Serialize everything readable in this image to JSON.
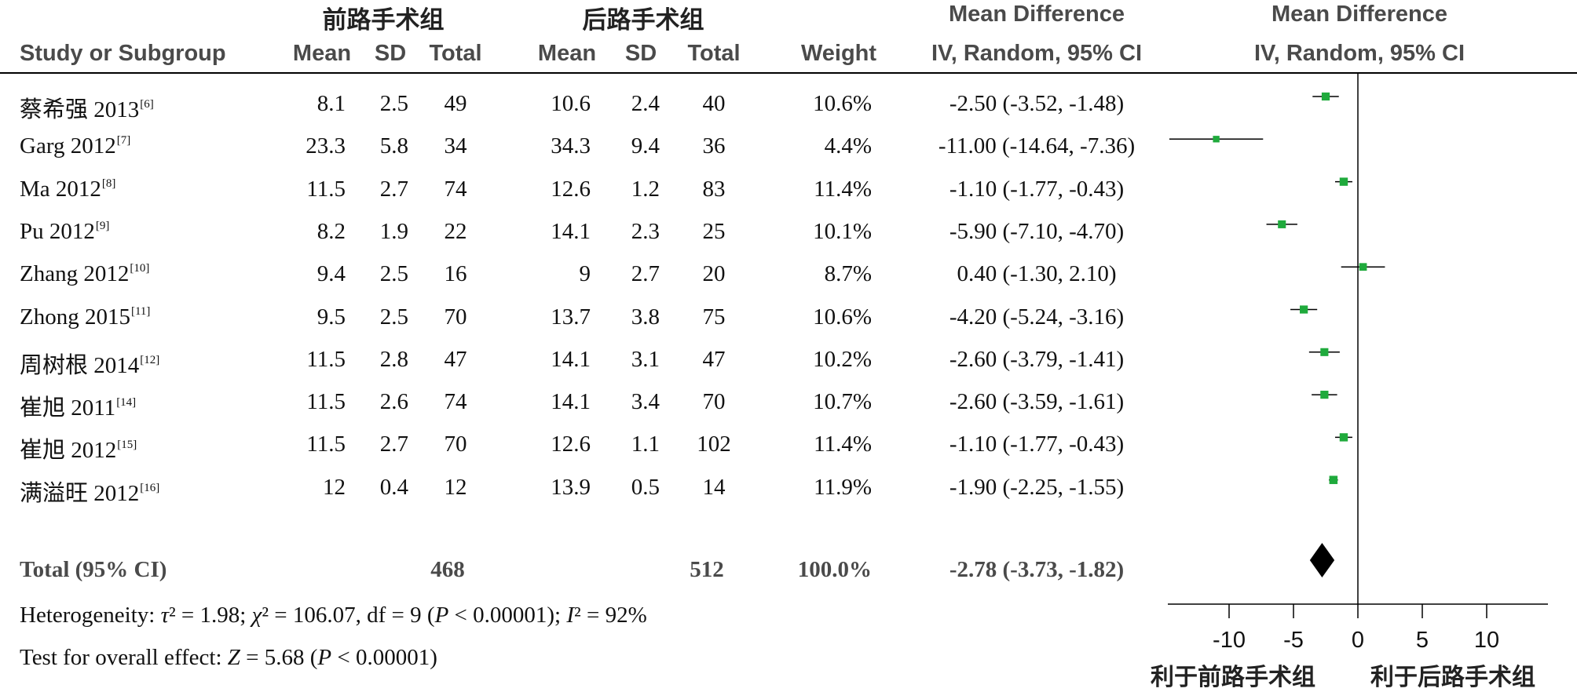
{
  "headers": {
    "group1": "前路手术组",
    "group2": "后路手术组",
    "study": "Study or Subgroup",
    "mean": "Mean",
    "sd": "SD",
    "total": "Total",
    "weight": "Weight",
    "md_title": "Mean Difference",
    "md_method": "IV, Random, 95% CI"
  },
  "rows": [
    {
      "study": "蔡希强 2013",
      "ref": "[6]",
      "m1": "8.1",
      "sd1": "2.5",
      "n1": "49",
      "m2": "10.6",
      "sd2": "2.4",
      "n2": "40",
      "weight": "10.6%",
      "ci": "-2.50 (-3.52, -1.48)"
    },
    {
      "study": "Garg 2012",
      "ref": "[7]",
      "m1": "23.3",
      "sd1": "5.8",
      "n1": "34",
      "m2": "34.3",
      "sd2": "9.4",
      "n2": "36",
      "weight": "4.4%",
      "ci": "-11.00 (-14.64, -7.36)"
    },
    {
      "study": "Ma 2012",
      "ref": "[8]",
      "m1": "11.5",
      "sd1": "2.7",
      "n1": "74",
      "m2": "12.6",
      "sd2": "1.2",
      "n2": "83",
      "weight": "11.4%",
      "ci": "-1.10 (-1.77, -0.43)"
    },
    {
      "study": "Pu 2012",
      "ref": "[9]",
      "m1": "8.2",
      "sd1": "1.9",
      "n1": "22",
      "m2": "14.1",
      "sd2": "2.3",
      "n2": "25",
      "weight": "10.1%",
      "ci": "-5.90 (-7.10, -4.70)"
    },
    {
      "study": "Zhang 2012",
      "ref": "[10]",
      "m1": "9.4",
      "sd1": "2.5",
      "n1": "16",
      "m2": "9",
      "sd2": "2.7",
      "n2": "20",
      "weight": "8.7%",
      "ci": "0.40 (-1.30, 2.10)"
    },
    {
      "study": "Zhong 2015",
      "ref": "[11]",
      "m1": "9.5",
      "sd1": "2.5",
      "n1": "70",
      "m2": "13.7",
      "sd2": "3.8",
      "n2": "75",
      "weight": "10.6%",
      "ci": "-4.20 (-5.24, -3.16)"
    },
    {
      "study": "周树根 2014",
      "ref": "[12]",
      "m1": "11.5",
      "sd1": "2.8",
      "n1": "47",
      "m2": "14.1",
      "sd2": "3.1",
      "n2": "47",
      "weight": "10.2%",
      "ci": "-2.60 (-3.79, -1.41)"
    },
    {
      "study": "崔旭 2011",
      "ref": "[14]",
      "m1": "11.5",
      "sd1": "2.6",
      "n1": "74",
      "m2": "14.1",
      "sd2": "3.4",
      "n2": "70",
      "weight": "10.7%",
      "ci": "-2.60 (-3.59, -1.61)"
    },
    {
      "study": "崔旭 2012",
      "ref": "[15]",
      "m1": "11.5",
      "sd1": "2.7",
      "n1": "70",
      "m2": "12.6",
      "sd2": "1.1",
      "n2": "102",
      "weight": "11.4%",
      "ci": "-1.10 (-1.77, -0.43)"
    },
    {
      "study": "满溢旺 2012",
      "ref": "[16]",
      "m1": "12",
      "sd1": "0.4",
      "n1": "12",
      "m2": "13.9",
      "sd2": "0.5",
      "n2": "14",
      "weight": "11.9%",
      "ci": "-1.90 (-2.25, -1.55)"
    }
  ],
  "total_row": {
    "label": "Total (95% CI)",
    "n1": "468",
    "n2": "512",
    "weight": "100.0%",
    "ci": "-2.78 (-3.73, -1.82)"
  },
  "heterogeneity": {
    "prefix": "Heterogeneity: ",
    "tau_sym": "τ",
    "tau_rest": "² = 1.98; ",
    "chi_sym": "χ",
    "chi_rest": "² = 106.07, df = 9 (",
    "p_sym": "P",
    "p_rest": " < 0.00001); ",
    "i_sym": "I",
    "i_rest": "² = 92%"
  },
  "overall": {
    "prefix": "Test for overall effect: ",
    "z_sym": "Z",
    "z_rest": " = 5.68 (",
    "p_sym": "P",
    "p_rest": " < 0.00001)"
  },
  "favours": {
    "left": "利于前路手术组",
    "right": "利于后路手术组"
  },
  "chart_data": {
    "type": "forest",
    "measure": "Mean Difference, IV, Random, 95% CI",
    "studies": [
      {
        "name": "蔡希强 2013",
        "md": -2.5,
        "lo": -3.52,
        "hi": -1.48,
        "weight": 10.6
      },
      {
        "name": "Garg 2012",
        "md": -11.0,
        "lo": -14.64,
        "hi": -7.36,
        "weight": 4.4
      },
      {
        "name": "Ma 2012",
        "md": -1.1,
        "lo": -1.77,
        "hi": -0.43,
        "weight": 11.4
      },
      {
        "name": "Pu 2012",
        "md": -5.9,
        "lo": -7.1,
        "hi": -4.7,
        "weight": 10.1
      },
      {
        "name": "Zhang 2012",
        "md": 0.4,
        "lo": -1.3,
        "hi": 2.1,
        "weight": 8.7
      },
      {
        "name": "Zhong 2015",
        "md": -4.2,
        "lo": -5.24,
        "hi": -3.16,
        "weight": 10.6
      },
      {
        "name": "周树根 2014",
        "md": -2.6,
        "lo": -3.79,
        "hi": -1.41,
        "weight": 10.2
      },
      {
        "name": "崔旭 2011",
        "md": -2.6,
        "lo": -3.59,
        "hi": -1.61,
        "weight": 10.7
      },
      {
        "name": "崔旭 2012",
        "md": -1.1,
        "lo": -1.77,
        "hi": -0.43,
        "weight": 11.4
      },
      {
        "name": "满溢旺 2012",
        "md": -1.9,
        "lo": -2.25,
        "hi": -1.55,
        "weight": 11.9
      }
    ],
    "pooled": {
      "md": -2.78,
      "lo": -3.73,
      "hi": -1.82,
      "weight": 100.0
    },
    "xlim": [
      -15,
      15
    ],
    "xticks": [
      -10,
      -5,
      0,
      5,
      10
    ],
    "colors": {
      "square": "#1faa3c",
      "line": "#000000",
      "diamond": "#000000"
    }
  }
}
